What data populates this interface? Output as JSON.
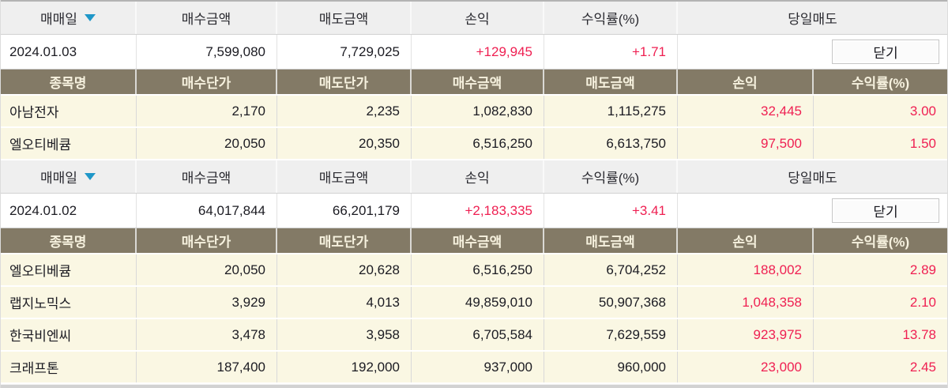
{
  "labels": {
    "trade_date": "매매일",
    "buy_amount": "매수금액",
    "sell_amount": "매도금액",
    "profit": "손익",
    "rate": "수익률(%)",
    "day_sell": "당일매도",
    "stock_name": "종목명",
    "buy_price": "매수단가",
    "sell_price": "매도단가",
    "close": "닫기"
  },
  "colors": {
    "profit_red": "#ef2052",
    "subheader_brown": "#837a66",
    "subheader_text": "#f6f1de",
    "stock_row_yellow": "#faf7e3",
    "header_gray": "#efefef",
    "sort_arrow_blue": "#1f97c8"
  },
  "sections": [
    {
      "date": "2024.01.03",
      "buy_amount": "7,599,080",
      "sell_amount": "7,729,025",
      "profit": "+129,945",
      "rate": "+1.71",
      "stocks": [
        {
          "name": "아남전자",
          "buy_price": "2,170",
          "sell_price": "2,235",
          "buy_amount": "1,082,830",
          "sell_amount": "1,115,275",
          "profit": "32,445",
          "rate": "3.00"
        },
        {
          "name": "엘오티베큠",
          "buy_price": "20,050",
          "sell_price": "20,350",
          "buy_amount": "6,516,250",
          "sell_amount": "6,613,750",
          "profit": "97,500",
          "rate": "1.50"
        }
      ]
    },
    {
      "date": "2024.01.02",
      "buy_amount": "64,017,844",
      "sell_amount": "66,201,179",
      "profit": "+2,183,335",
      "rate": "+3.41",
      "stocks": [
        {
          "name": "엘오티베큠",
          "buy_price": "20,050",
          "sell_price": "20,628",
          "buy_amount": "6,516,250",
          "sell_amount": "6,704,252",
          "profit": "188,002",
          "rate": "2.89"
        },
        {
          "name": "랩지노믹스",
          "buy_price": "3,929",
          "sell_price": "4,013",
          "buy_amount": "49,859,010",
          "sell_amount": "50,907,368",
          "profit": "1,048,358",
          "rate": "2.10"
        },
        {
          "name": "한국비엔씨",
          "buy_price": "3,478",
          "sell_price": "3,958",
          "buy_amount": "6,705,584",
          "sell_amount": "7,629,559",
          "profit": "923,975",
          "rate": "13.78"
        },
        {
          "name": "크래프톤",
          "buy_price": "187,400",
          "sell_price": "192,000",
          "buy_amount": "937,000",
          "sell_amount": "960,000",
          "profit": "23,000",
          "rate": "2.45"
        }
      ]
    }
  ]
}
